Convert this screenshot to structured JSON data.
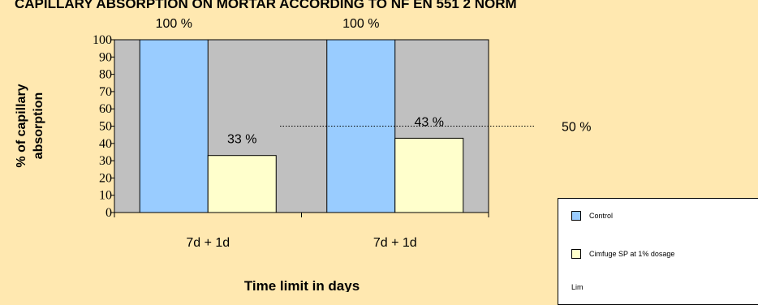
{
  "chart_data": {
    "type": "bar",
    "title": "CAPILLARY ABSORPTION ON MORTAR ACCORDING TO NF EN 551 2 NORM",
    "xlabel": "Time limit in days",
    "ylabel_line1": "% of capillary",
    "ylabel_line2": "absorption",
    "categories": [
      "7d + 1d",
      "7d + 1d"
    ],
    "series": [
      {
        "name": "Control",
        "values": [
          100,
          100
        ],
        "color": "#99CCFF",
        "value_labels": [
          "100 %",
          "100 %"
        ]
      },
      {
        "name": "Cimfuge SP at 1% dosage",
        "values": [
          33,
          43
        ],
        "color": "#FFFFCC",
        "value_labels": [
          "33 %",
          "43 %"
        ]
      }
    ],
    "ylim": [
      0,
      100
    ],
    "yticks": [
      0,
      10,
      20,
      30,
      40,
      50,
      60,
      70,
      80,
      90,
      100
    ],
    "reference_line": {
      "value": 50,
      "label": "50 %",
      "style": "dotted"
    },
    "plot_background": "#C0C0C0",
    "legend": {
      "placement": "bottom-right",
      "partial_third_entry": "Lim"
    },
    "grid": false
  }
}
